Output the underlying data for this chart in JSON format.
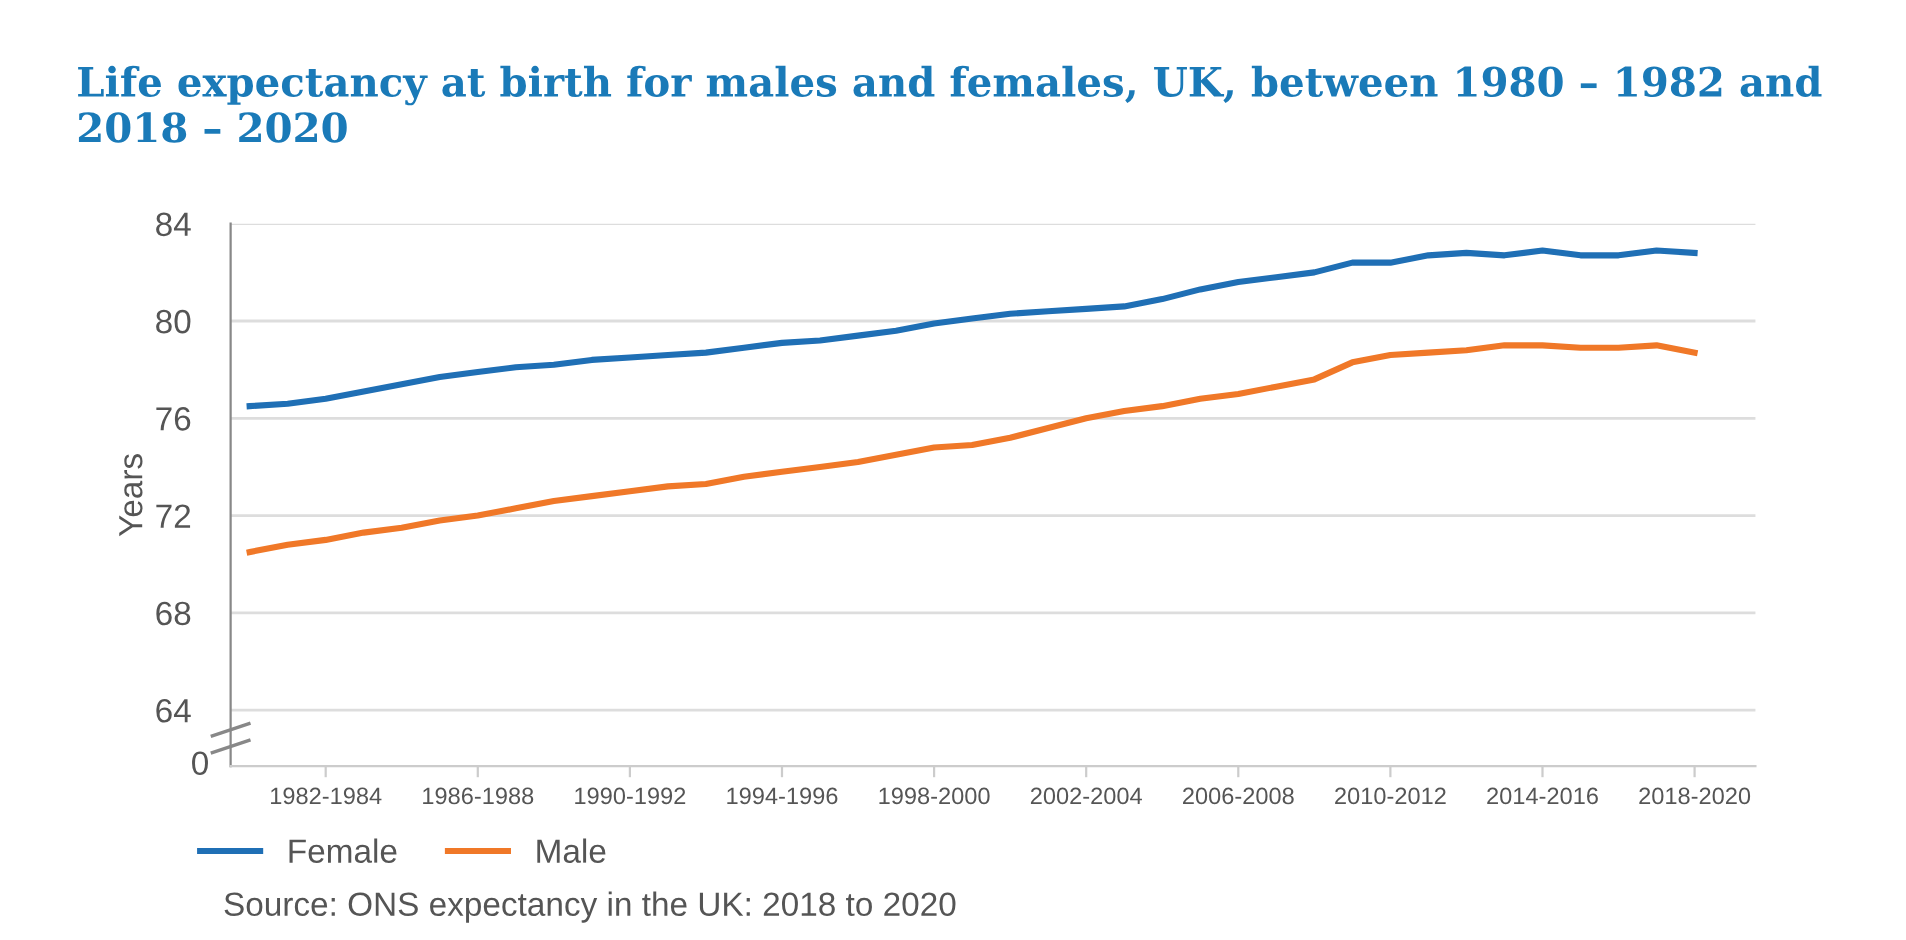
{
  "chart_data": {
    "type": "line",
    "title": "Life expectancy at birth for males and females, UK, between 1980 – 1982 and 2018 – 2020",
    "ylabel": "Years",
    "categories": [
      null,
      null,
      "1982-1984",
      null,
      null,
      null,
      "1986-1988",
      null,
      null,
      null,
      "1990-1992",
      null,
      null,
      null,
      "1994-1996",
      null,
      null,
      null,
      "1998-2000",
      null,
      null,
      null,
      "2002-2004",
      null,
      null,
      null,
      "2006-2008",
      null,
      null,
      null,
      "2010-2012",
      null,
      null,
      null,
      "2014-2016",
      null,
      null,
      null,
      "2018-2020"
    ],
    "series": [
      {
        "name": "Female",
        "color": "#1f6fb5",
        "values": [
          76.5,
          76.6,
          76.8,
          77.1,
          77.4,
          77.7,
          77.9,
          78.1,
          78.2,
          78.4,
          78.5,
          78.6,
          78.7,
          78.9,
          79.1,
          79.2,
          79.4,
          79.6,
          79.9,
          80.1,
          80.3,
          80.4,
          80.5,
          80.6,
          80.9,
          81.3,
          81.6,
          81.8,
          82.0,
          82.4,
          82.4,
          82.7,
          82.8,
          82.7,
          82.9,
          82.7,
          82.7,
          82.9,
          82.8
        ]
      },
      {
        "name": "Male",
        "color": "#f07828",
        "values": [
          70.5,
          70.8,
          71.0,
          71.3,
          71.5,
          71.8,
          72.0,
          72.3,
          72.6,
          72.8,
          73.0,
          73.2,
          73.3,
          73.6,
          73.8,
          74.0,
          74.2,
          74.5,
          74.8,
          74.9,
          75.2,
          75.6,
          76.0,
          76.3,
          76.5,
          76.8,
          77.0,
          77.3,
          77.6,
          78.3,
          78.6,
          78.7,
          78.8,
          79.0,
          79.0,
          78.9,
          78.9,
          79.0,
          78.7
        ]
      }
    ],
    "ylim": [
      61.7,
      84
    ],
    "yticks": [
      64,
      68,
      72,
      76,
      80,
      84
    ],
    "grid": "y",
    "legend": "bottom",
    "marker": "none",
    "line_style": "solid",
    "annotations": [
      "0",
      "Source: ONS expectancy in the UK: 2018 to 2020"
    ]
  }
}
